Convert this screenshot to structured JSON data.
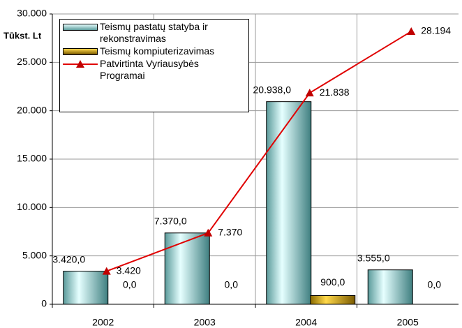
{
  "chart_data": {
    "type": "bar",
    "y_label": "Tūkst. Lt",
    "categories": [
      "2002",
      "2003",
      "2004",
      "2005"
    ],
    "ylim": [
      0,
      30000
    ],
    "yticks": [
      0,
      {
        "value": 5000,
        "label": "5.000"
      },
      {
        "value": 10000,
        "label": "10.000"
      },
      {
        "value": 15000,
        "label": "15.000"
      },
      {
        "value": 20000,
        "label": "20.000"
      },
      {
        "value": 25000,
        "label": "25.000"
      },
      {
        "value": 30000,
        "label": "30.000"
      }
    ],
    "grid": true,
    "series": [
      {
        "name": "Teismų pastatų statyba ir rekonstravimas",
        "type": "bar",
        "color": "#a8e4e4",
        "values": [
          3420,
          7370,
          20938,
          3555
        ],
        "value_labels": [
          "3.420,0",
          "7.370,0",
          "20.938,0",
          "3.555,0"
        ]
      },
      {
        "name": "Teismų kompiuterizavimas",
        "type": "bar",
        "color": "#d4a800",
        "values": [
          0,
          0,
          900,
          0
        ],
        "value_labels": [
          "0,0",
          "0,0",
          "900,0",
          "0,0"
        ]
      },
      {
        "name": "Patvirtinta Vyriausybės Programai",
        "type": "line",
        "color": "#e00000",
        "values": [
          3420,
          7370,
          21838,
          28194
        ],
        "value_labels": [
          "3.420",
          "7.370",
          "21.838",
          "28.194"
        ]
      }
    ]
  }
}
